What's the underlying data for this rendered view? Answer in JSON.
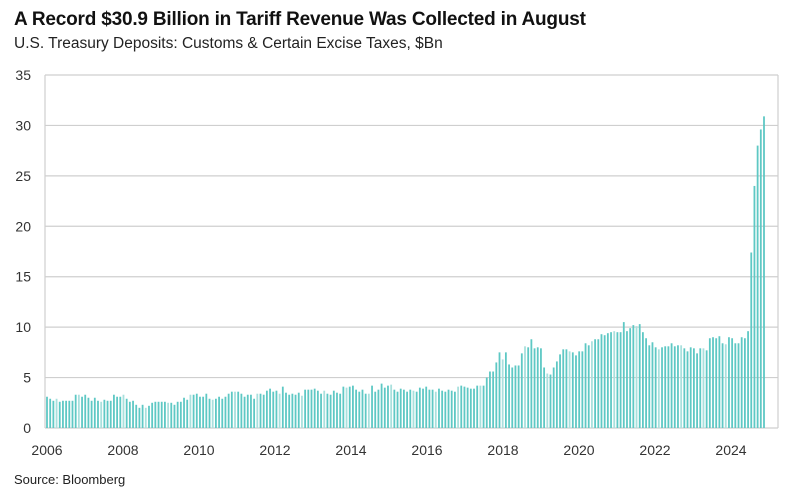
{
  "chart_data": {
    "type": "bar",
    "title": "A Record $30.9 Billion in Tariff Revenue Was Collected in August",
    "subtitle": "U.S. Treasury Deposits: Customs & Certain Excise Taxes, $Bn",
    "source": "Source: Bloomberg",
    "xlabel": "",
    "ylabel": "",
    "ylim": [
      0,
      35
    ],
    "yticks": [
      "0",
      "5",
      "10",
      "15",
      "20",
      "25",
      "30",
      "35"
    ],
    "xticks": [
      "2006",
      "2008",
      "2010",
      "2012",
      "2014",
      "2016",
      "2018",
      "2020",
      "2022",
      "2024"
    ],
    "grid": true,
    "frequency": "monthly",
    "color": "#5ec8c4",
    "values": [
      3.1,
      2.9,
      2.7,
      2.9,
      2.6,
      2.7,
      2.7,
      2.7,
      2.7,
      3.3,
      3.3,
      3.1,
      3.3,
      3.0,
      2.7,
      3.0,
      2.7,
      2.6,
      2.8,
      2.7,
      2.7,
      3.3,
      3.1,
      3.1,
      3.3,
      2.9,
      2.6,
      2.7,
      2.3,
      2.0,
      2.3,
      2.0,
      2.2,
      2.5,
      2.6,
      2.6,
      2.6,
      2.6,
      2.5,
      2.5,
      2.3,
      2.6,
      2.6,
      3.0,
      2.8,
      3.3,
      3.3,
      3.4,
      3.1,
      3.1,
      3.4,
      2.9,
      2.8,
      2.9,
      3.1,
      2.9,
      3.1,
      3.4,
      3.6,
      3.6,
      3.6,
      3.4,
      3.1,
      3.3,
      3.3,
      2.9,
      3.4,
      3.4,
      3.3,
      3.7,
      3.9,
      3.6,
      3.7,
      3.4,
      4.1,
      3.5,
      3.3,
      3.4,
      3.3,
      3.5,
      3.2,
      3.8,
      3.8,
      3.8,
      3.9,
      3.7,
      3.4,
      3.7,
      3.4,
      3.3,
      3.7,
      3.5,
      3.4,
      4.1,
      4.0,
      4.1,
      4.2,
      3.8,
      3.6,
      3.8,
      3.4,
      3.4,
      4.2,
      3.6,
      3.8,
      4.4,
      4.0,
      4.2,
      4.3,
      3.8,
      3.6,
      3.9,
      3.8,
      3.6,
      3.8,
      3.7,
      3.6,
      4.0,
      3.9,
      4.1,
      3.8,
      3.8,
      3.6,
      3.9,
      3.7,
      3.6,
      3.8,
      3.7,
      3.6,
      4.1,
      4.2,
      4.1,
      4.0,
      3.9,
      3.9,
      4.2,
      4.2,
      4.2,
      5.0,
      5.6,
      5.6,
      6.5,
      7.5,
      6.8,
      7.5,
      6.3,
      6.0,
      6.2,
      6.2,
      7.4,
      8.1,
      8.0,
      8.8,
      7.9,
      8.0,
      7.9,
      6.0,
      5.4,
      5.3,
      6.0,
      6.6,
      7.3,
      7.8,
      7.8,
      7.6,
      7.5,
      7.2,
      7.6,
      7.6,
      8.4,
      8.2,
      8.6,
      8.8,
      8.8,
      9.3,
      9.2,
      9.4,
      9.5,
      9.6,
      9.5,
      9.5,
      10.5,
      9.6,
      9.9,
      10.2,
      10.1,
      10.3,
      9.5,
      8.9,
      8.2,
      8.5,
      8.0,
      7.8,
      8.0,
      8.1,
      8.1,
      8.4,
      8.1,
      8.2,
      8.2,
      7.9,
      7.6,
      8.0,
      7.9,
      7.4,
      7.9,
      7.9,
      7.7,
      8.9,
      9.0,
      8.9,
      9.1,
      8.4,
      8.3,
      9.0,
      8.9,
      8.4,
      8.4,
      9.0,
      8.9,
      9.6,
      17.4,
      24.0,
      28.0,
      29.6,
      30.9
    ]
  }
}
